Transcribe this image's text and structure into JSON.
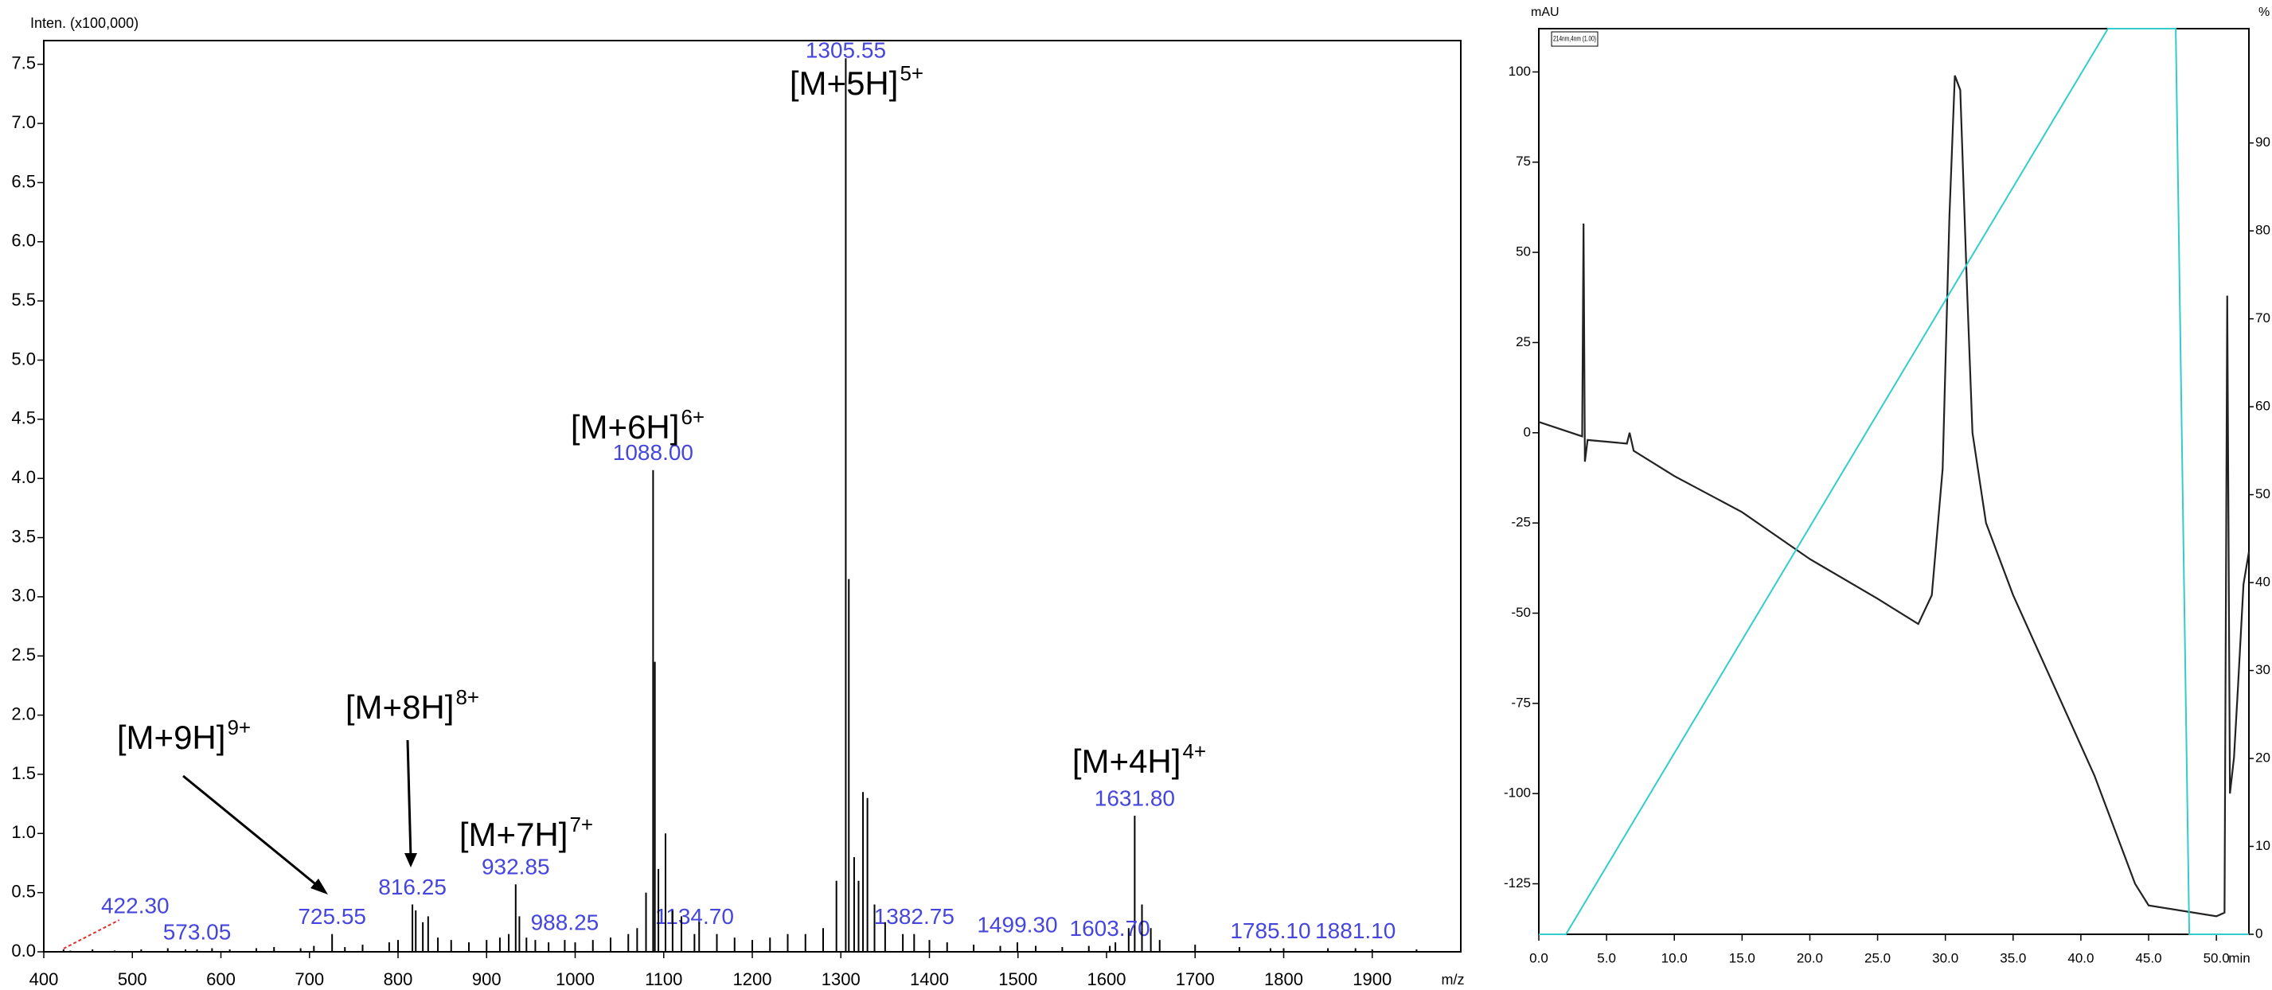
{
  "chart_data": [
    {
      "type": "stem",
      "y_label": "Inten. (x100,000)",
      "x_label": "m/z",
      "xlim": [
        400,
        2000
      ],
      "ylim": [
        0,
        7.7
      ],
      "xticks": [
        400,
        500,
        600,
        700,
        800,
        900,
        1000,
        1100,
        1200,
        1300,
        1400,
        1500,
        1600,
        1700,
        1800,
        1900
      ],
      "yticks": [
        {
          "value": 0,
          "label": "0.0"
        },
        {
          "value": 0.5,
          "label": "0.5"
        },
        {
          "value": 1,
          "label": "1.0"
        },
        {
          "value": 1.5,
          "label": "1.5"
        },
        {
          "value": 2,
          "label": "2.0"
        },
        {
          "value": 2.5,
          "label": "2.5"
        },
        {
          "value": 3,
          "label": "3.0"
        },
        {
          "value": 3.5,
          "label": "3.5"
        },
        {
          "value": 4,
          "label": "4.0"
        },
        {
          "value": 4.5,
          "label": "4.5"
        },
        {
          "value": 5,
          "label": "5.0"
        },
        {
          "value": 5.5,
          "label": "5.5"
        },
        {
          "value": 6,
          "label": "6.0"
        },
        {
          "value": 6.5,
          "label": "6.5"
        },
        {
          "value": 7,
          "label": "7.0"
        },
        {
          "value": 7.5,
          "label": "7.5"
        }
      ],
      "label_color": "#4646dc",
      "series": [
        {
          "color": "#000000",
          "x": [
            422.3,
            573.05,
            725.55,
            816.25,
            932.85,
            988.25,
            1088,
            1134.7,
            1305.55,
            1382.75,
            1499.3,
            1603.7,
            1631.8,
            1785.1,
            1881.1
          ],
          "x_labels": [
            "422.30",
            "573.05",
            "725.55",
            "816.25",
            "932.85",
            "988.25",
            "1088.00",
            "1134.70",
            "1305.55",
            "1382.75",
            "1499.30",
            "1603.70",
            "1631.80",
            "1785.10",
            "1881.10"
          ],
          "values": [
            0.02,
            0.02,
            0.15,
            0.4,
            0.57,
            0.1,
            4.07,
            0.15,
            7.55,
            0.15,
            0.08,
            0.05,
            1.15,
            0.03,
            0.03
          ]
        },
        {
          "color": "#000000",
          "x": [
            430,
            455,
            480,
            510,
            540,
            560,
            590,
            610,
            640,
            660,
            690,
            705,
            740,
            760,
            790,
            800,
            820,
            828,
            834,
            845,
            860,
            880,
            900,
            915,
            925,
            937,
            945,
            955,
            970,
            1000,
            1020,
            1040,
            1060,
            1070,
            1080,
            1090,
            1094,
            1102,
            1110,
            1120,
            1140,
            1160,
            1180,
            1200,
            1220,
            1240,
            1260,
            1280,
            1295,
            1309,
            1315,
            1320,
            1325,
            1330,
            1338,
            1350,
            1370,
            1400,
            1420,
            1450,
            1480,
            1520,
            1550,
            1580,
            1610,
            1625,
            1640,
            1650,
            1660,
            1700,
            1750,
            1800,
            1850,
            1900,
            1950
          ],
          "values": [
            0.01,
            0.02,
            0.01,
            0.02,
            0.03,
            0.02,
            0.03,
            0.02,
            0.03,
            0.04,
            0.03,
            0.05,
            0.04,
            0.06,
            0.08,
            0.1,
            0.35,
            0.25,
            0.3,
            0.12,
            0.1,
            0.08,
            0.1,
            0.12,
            0.15,
            0.3,
            0.12,
            0.1,
            0.08,
            0.08,
            0.1,
            0.12,
            0.15,
            0.2,
            0.5,
            2.45,
            0.7,
            1.0,
            0.35,
            0.3,
            0.25,
            0.15,
            0.12,
            0.1,
            0.12,
            0.15,
            0.15,
            0.2,
            0.6,
            3.15,
            0.8,
            0.6,
            1.35,
            1.3,
            0.4,
            0.25,
            0.15,
            0.1,
            0.08,
            0.06,
            0.05,
            0.05,
            0.04,
            0.05,
            0.08,
            0.2,
            0.4,
            0.2,
            0.1,
            0.06,
            0.04,
            0.03,
            0.03,
            0.02,
            0.02
          ]
        }
      ],
      "annotations": [
        {
          "text": "[M+5H]",
          "sup": "5+"
        },
        {
          "text": "[M+6H]",
          "sup": "6+"
        },
        {
          "text": "[M+8H]",
          "sup": "8+"
        },
        {
          "text": "[M+9H]",
          "sup": "9+"
        },
        {
          "text": "[M+7H]",
          "sup": "7+"
        },
        {
          "text": "[M+4H]",
          "sup": "4+"
        }
      ]
    },
    {
      "type": "line",
      "y_label": "mAU",
      "y2_label": "%",
      "x_label": "min",
      "legend_text": "214nm,4nm (1.00)",
      "xlim": [
        0,
        52.4
      ],
      "ylim": [
        -139,
        112
      ],
      "y2lim": [
        0,
        103
      ],
      "xticks": [
        {
          "value": 0,
          "label": "0.0"
        },
        {
          "value": 5,
          "label": "5.0"
        },
        {
          "value": 10,
          "label": "10.0"
        },
        {
          "value": 15,
          "label": "15.0"
        },
        {
          "value": 20,
          "label": "20.0"
        },
        {
          "value": 25,
          "label": "25.0"
        },
        {
          "value": 30,
          "label": "30.0"
        },
        {
          "value": 35,
          "label": "35.0"
        },
        {
          "value": 40,
          "label": "40.0"
        },
        {
          "value": 45,
          "label": "45.0"
        },
        {
          "value": 50,
          "label": "50.0"
        }
      ],
      "yticks": [
        -125,
        -100,
        -75,
        -50,
        -25,
        0,
        25,
        50,
        75,
        100
      ],
      "y2ticks": [
        0,
        10,
        20,
        30,
        40,
        50,
        60,
        70,
        80,
        90
      ],
      "series": [
        {
          "color": "#222222",
          "x": [
            0,
            3.2,
            3.3,
            3.4,
            3.6,
            6.5,
            6.7,
            7,
            10,
            15,
            20,
            25,
            28,
            29,
            29.8,
            30.3,
            30.7,
            31.1,
            31.6,
            32,
            33,
            35,
            38,
            41,
            44,
            45,
            50,
            50.6,
            50.8,
            51,
            51.3,
            51.6,
            52,
            52.4
          ],
          "values": [
            3,
            -1,
            58,
            -8,
            -2,
            -3,
            0,
            -5,
            -12,
            -22,
            -35,
            -46,
            -53,
            -45,
            -10,
            60,
            99,
            95,
            40,
            0,
            -25,
            -45,
            -70,
            -95,
            -125,
            -131,
            -134,
            -133,
            38,
            -100,
            -90,
            -70,
            -42,
            -33
          ]
        },
        {
          "color": "#33cccc",
          "axis": "y2",
          "x": [
            0,
            2,
            42,
            47,
            48,
            52.4
          ],
          "values": [
            0,
            0,
            103,
            103,
            0,
            0
          ]
        }
      ]
    }
  ]
}
